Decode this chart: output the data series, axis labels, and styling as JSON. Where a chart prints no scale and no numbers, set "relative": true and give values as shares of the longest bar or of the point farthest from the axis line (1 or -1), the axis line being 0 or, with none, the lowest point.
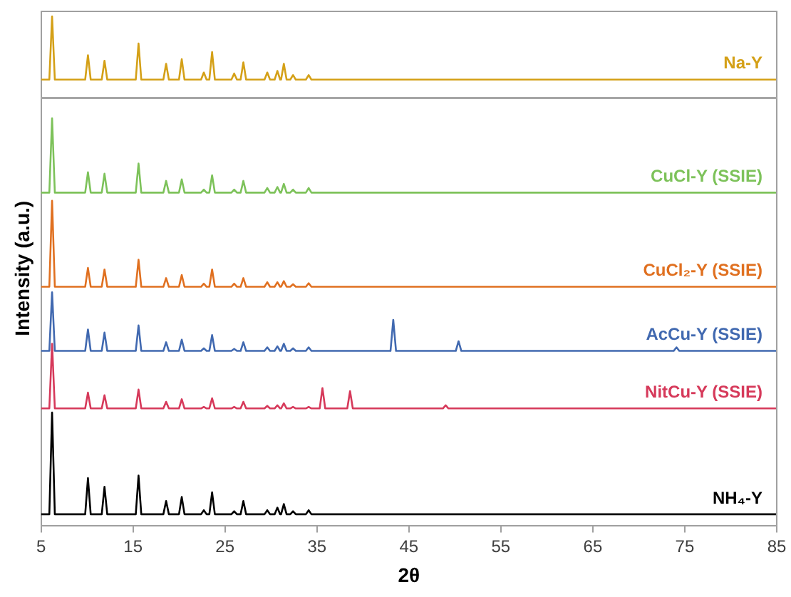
{
  "chart_data": {
    "type": "line",
    "xlabel": "2θ",
    "ylabel": "Intensity (a.u.)",
    "relative": true,
    "legend": false,
    "grid": false,
    "marker": "none",
    "line_style": "solid",
    "xlim": [
      5,
      85
    ],
    "xticks": [
      5,
      15,
      25,
      35,
      45,
      55,
      65,
      75,
      85
    ],
    "x": [
      5,
      5.9,
      6.2,
      6.5,
      9.8,
      10.1,
      10.4,
      11.6,
      11.9,
      12.2,
      15.3,
      15.6,
      15.9,
      18.3,
      18.6,
      18.9,
      20.0,
      20.3,
      20.6,
      22.4,
      22.7,
      23.0,
      23.3,
      23.6,
      23.9,
      25.7,
      26.0,
      26.3,
      26.7,
      27.0,
      27.3,
      29.3,
      29.6,
      29.9,
      30.4,
      30.7,
      31.0,
      31.1,
      31.4,
      31.7,
      32.1,
      32.4,
      32.7,
      33.8,
      34.1,
      34.4,
      35.3,
      35.6,
      35.9,
      38.3,
      38.6,
      38.9,
      43.0,
      43.3,
      43.6,
      48.7,
      49.0,
      49.3,
      50.1,
      50.4,
      50.7,
      73.8,
      74.1,
      74.4,
      85
    ],
    "ref_lines": [
      {
        "axis": "y",
        "value": 0.84,
        "color": "#a6a6a6"
      }
    ],
    "series": [
      {
        "name": "Na-Y",
        "color": "#d4a017",
        "values": [
          0.876,
          0.876,
          1.0,
          0.876,
          0.876,
          0.924,
          0.876,
          0.876,
          0.913,
          0.876,
          0.876,
          0.947,
          0.876,
          0.876,
          0.907,
          0.876,
          0.876,
          0.916,
          0.876,
          0.876,
          0.89,
          0.876,
          0.876,
          0.93,
          0.876,
          0.876,
          0.888,
          0.876,
          0.876,
          0.91,
          0.876,
          0.876,
          0.89,
          0.876,
          0.876,
          0.893,
          0.876,
          0.876,
          0.907,
          0.876,
          0.876,
          0.885,
          0.876,
          0.876,
          0.885,
          0.876,
          0.876,
          0.876,
          0.876,
          0.876,
          0.876,
          0.876,
          0.876,
          0.876,
          0.876,
          0.876,
          0.876,
          0.876,
          0.876,
          0.876,
          0.876,
          0.876,
          0.876,
          0.876,
          0.876
        ]
      },
      {
        "name": "CuCl-Y (SSIE)",
        "color": "#7dc25a",
        "values": [
          0.654,
          0.654,
          0.8,
          0.654,
          0.654,
          0.694,
          0.654,
          0.654,
          0.691,
          0.654,
          0.654,
          0.711,
          0.654,
          0.654,
          0.677,
          0.654,
          0.654,
          0.68,
          0.654,
          0.654,
          0.66,
          0.654,
          0.654,
          0.688,
          0.654,
          0.654,
          0.66,
          0.654,
          0.654,
          0.677,
          0.654,
          0.654,
          0.663,
          0.654,
          0.654,
          0.665,
          0.654,
          0.654,
          0.671,
          0.654,
          0.654,
          0.66,
          0.654,
          0.654,
          0.663,
          0.654,
          0.654,
          0.654,
          0.654,
          0.654,
          0.654,
          0.654,
          0.654,
          0.654,
          0.654,
          0.654,
          0.654,
          0.654,
          0.654,
          0.654,
          0.654,
          0.654,
          0.654,
          0.654,
          0.654
        ]
      },
      {
        "name": "CuCl₂-Y (SSIE)",
        "color": "#e07020",
        "values": [
          0.469,
          0.469,
          0.638,
          0.469,
          0.469,
          0.506,
          0.469,
          0.469,
          0.503,
          0.469,
          0.469,
          0.522,
          0.469,
          0.469,
          0.486,
          0.469,
          0.469,
          0.492,
          0.469,
          0.469,
          0.475,
          0.469,
          0.469,
          0.503,
          0.469,
          0.469,
          0.475,
          0.469,
          0.469,
          0.486,
          0.469,
          0.469,
          0.478,
          0.469,
          0.469,
          0.478,
          0.469,
          0.469,
          0.48,
          0.469,
          0.469,
          0.474,
          0.469,
          0.469,
          0.476,
          0.469,
          0.469,
          0.469,
          0.469,
          0.469,
          0.469,
          0.469,
          0.469,
          0.469,
          0.469,
          0.469,
          0.469,
          0.469,
          0.469,
          0.469,
          0.469,
          0.469,
          0.469,
          0.469,
          0.469
        ]
      },
      {
        "name": "AcCu-Y (SSIE)",
        "color": "#4169b0",
        "values": [
          0.343,
          0.343,
          0.458,
          0.343,
          0.343,
          0.385,
          0.343,
          0.343,
          0.379,
          0.343,
          0.343,
          0.393,
          0.343,
          0.343,
          0.36,
          0.343,
          0.343,
          0.365,
          0.343,
          0.343,
          0.348,
          0.343,
          0.343,
          0.374,
          0.343,
          0.343,
          0.347,
          0.343,
          0.343,
          0.36,
          0.343,
          0.343,
          0.35,
          0.343,
          0.343,
          0.352,
          0.343,
          0.343,
          0.357,
          0.343,
          0.343,
          0.348,
          0.343,
          0.343,
          0.35,
          0.343,
          0.343,
          0.343,
          0.343,
          0.343,
          0.343,
          0.343,
          0.343,
          0.404,
          0.343,
          0.343,
          0.343,
          0.343,
          0.343,
          0.362,
          0.343,
          0.343,
          0.35,
          0.343,
          0.343
        ]
      },
      {
        "name": "NitCu-Y (SSIE)",
        "color": "#d6395a",
        "values": [
          0.23,
          0.23,
          0.357,
          0.23,
          0.23,
          0.261,
          0.23,
          0.23,
          0.256,
          0.23,
          0.23,
          0.267,
          0.23,
          0.23,
          0.243,
          0.23,
          0.23,
          0.248,
          0.23,
          0.23,
          0.233,
          0.23,
          0.23,
          0.25,
          0.23,
          0.23,
          0.233,
          0.23,
          0.23,
          0.243,
          0.23,
          0.23,
          0.235,
          0.23,
          0.23,
          0.236,
          0.23,
          0.23,
          0.24,
          0.23,
          0.23,
          0.233,
          0.23,
          0.23,
          0.233,
          0.23,
          0.23,
          0.27,
          0.23,
          0.23,
          0.264,
          0.23,
          0.23,
          0.23,
          0.23,
          0.23,
          0.236,
          0.23,
          0.23,
          0.23,
          0.23,
          0.23,
          0.23,
          0.23,
          0.23
        ]
      },
      {
        "name": "NH₄-Y",
        "color": "#000000",
        "values": [
          0.022,
          0.022,
          0.222,
          0.022,
          0.022,
          0.093,
          0.022,
          0.022,
          0.076,
          0.022,
          0.022,
          0.098,
          0.022,
          0.022,
          0.048,
          0.022,
          0.022,
          0.056,
          0.022,
          0.022,
          0.03,
          0.022,
          0.022,
          0.065,
          0.022,
          0.022,
          0.028,
          0.022,
          0.022,
          0.048,
          0.022,
          0.022,
          0.03,
          0.022,
          0.022,
          0.035,
          0.022,
          0.022,
          0.042,
          0.022,
          0.022,
          0.028,
          0.022,
          0.022,
          0.03,
          0.022,
          0.022,
          0.022,
          0.022,
          0.022,
          0.022,
          0.022,
          0.022,
          0.022,
          0.022,
          0.022,
          0.022,
          0.022,
          0.022,
          0.022,
          0.022,
          0.022,
          0.022,
          0.022,
          0.022
        ]
      }
    ]
  }
}
